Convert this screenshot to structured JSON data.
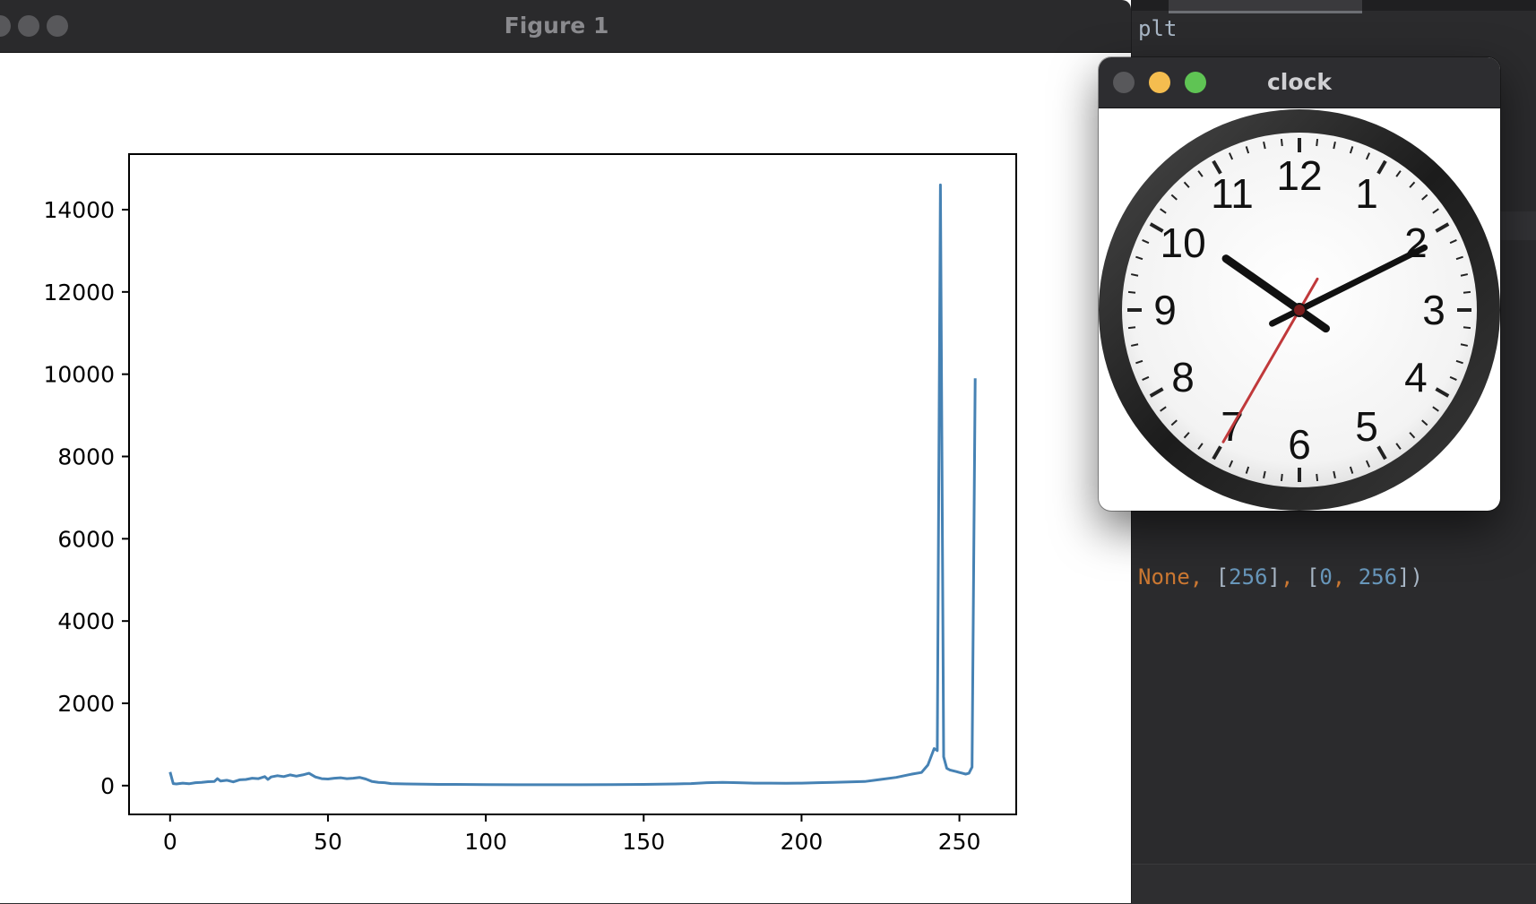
{
  "figure_window": {
    "title": "Figure 1"
  },
  "clock_window": {
    "title": "clock",
    "clock_numerals": [
      "12",
      "1",
      "2",
      "3",
      "4",
      "5",
      "6",
      "7",
      "8",
      "9",
      "10",
      "11"
    ],
    "displayed_time": {
      "hour": 10,
      "minute": 10,
      "second": 35
    }
  },
  "editor": {
    "line1": "plt",
    "line2_tokens": [
      {
        "text": "None",
        "cls": "kw"
      },
      {
        "text": ", ",
        "cls": "kw"
      },
      {
        "text": "[",
        "cls": ""
      },
      {
        "text": "256",
        "cls": "num"
      },
      {
        "text": "]",
        "cls": ""
      },
      {
        "text": ", ",
        "cls": "kw"
      },
      {
        "text": "[",
        "cls": ""
      },
      {
        "text": "0",
        "cls": "num"
      },
      {
        "text": ", ",
        "cls": "kw"
      },
      {
        "text": "256",
        "cls": "num"
      },
      {
        "text": "])",
        "cls": ""
      }
    ]
  },
  "colors": {
    "series": "#4682b4",
    "close_dot": "#58585b",
    "minimize_dot": "#f5bd4f",
    "zoom_dot": "#5fc454",
    "second_hand": "#c0393b"
  },
  "chart_data": {
    "type": "line",
    "title": "",
    "xlabel": "",
    "ylabel": "",
    "xlim": [
      -13,
      268
    ],
    "ylim": [
      -700,
      15350
    ],
    "xticks": [
      0,
      50,
      100,
      150,
      200,
      250
    ],
    "yticks": [
      0,
      2000,
      4000,
      6000,
      8000,
      10000,
      12000,
      14000
    ],
    "grid": false,
    "series": [
      {
        "x": [
          0,
          1,
          2,
          4,
          6,
          8,
          10,
          12,
          14,
          15,
          16,
          18,
          20,
          22,
          24,
          26,
          28,
          30,
          31,
          32,
          34,
          36,
          38,
          40,
          42,
          44,
          46,
          48,
          50,
          52,
          54,
          56,
          58,
          60,
          62,
          64,
          66,
          68,
          70,
          75,
          80,
          85,
          90,
          100,
          110,
          120,
          130,
          140,
          150,
          160,
          165,
          170,
          175,
          180,
          185,
          190,
          195,
          200,
          205,
          210,
          215,
          220,
          225,
          230,
          235,
          238,
          240,
          242,
          243,
          244,
          245,
          246,
          247,
          248,
          249,
          250,
          251,
          252,
          253,
          254,
          255
        ],
        "y": [
          330,
          50,
          40,
          60,
          45,
          70,
          80,
          95,
          100,
          170,
          110,
          130,
          90,
          140,
          150,
          180,
          170,
          220,
          150,
          210,
          240,
          220,
          260,
          230,
          260,
          300,
          210,
          170,
          160,
          180,
          190,
          170,
          180,
          200,
          160,
          100,
          80,
          70,
          50,
          40,
          35,
          30,
          30,
          25,
          20,
          20,
          20,
          25,
          30,
          40,
          50,
          70,
          80,
          70,
          60,
          60,
          55,
          60,
          70,
          80,
          90,
          100,
          150,
          200,
          280,
          320,
          500,
          900,
          850,
          14600,
          700,
          420,
          380,
          360,
          340,
          320,
          300,
          280,
          300,
          450,
          9900
        ]
      }
    ]
  }
}
